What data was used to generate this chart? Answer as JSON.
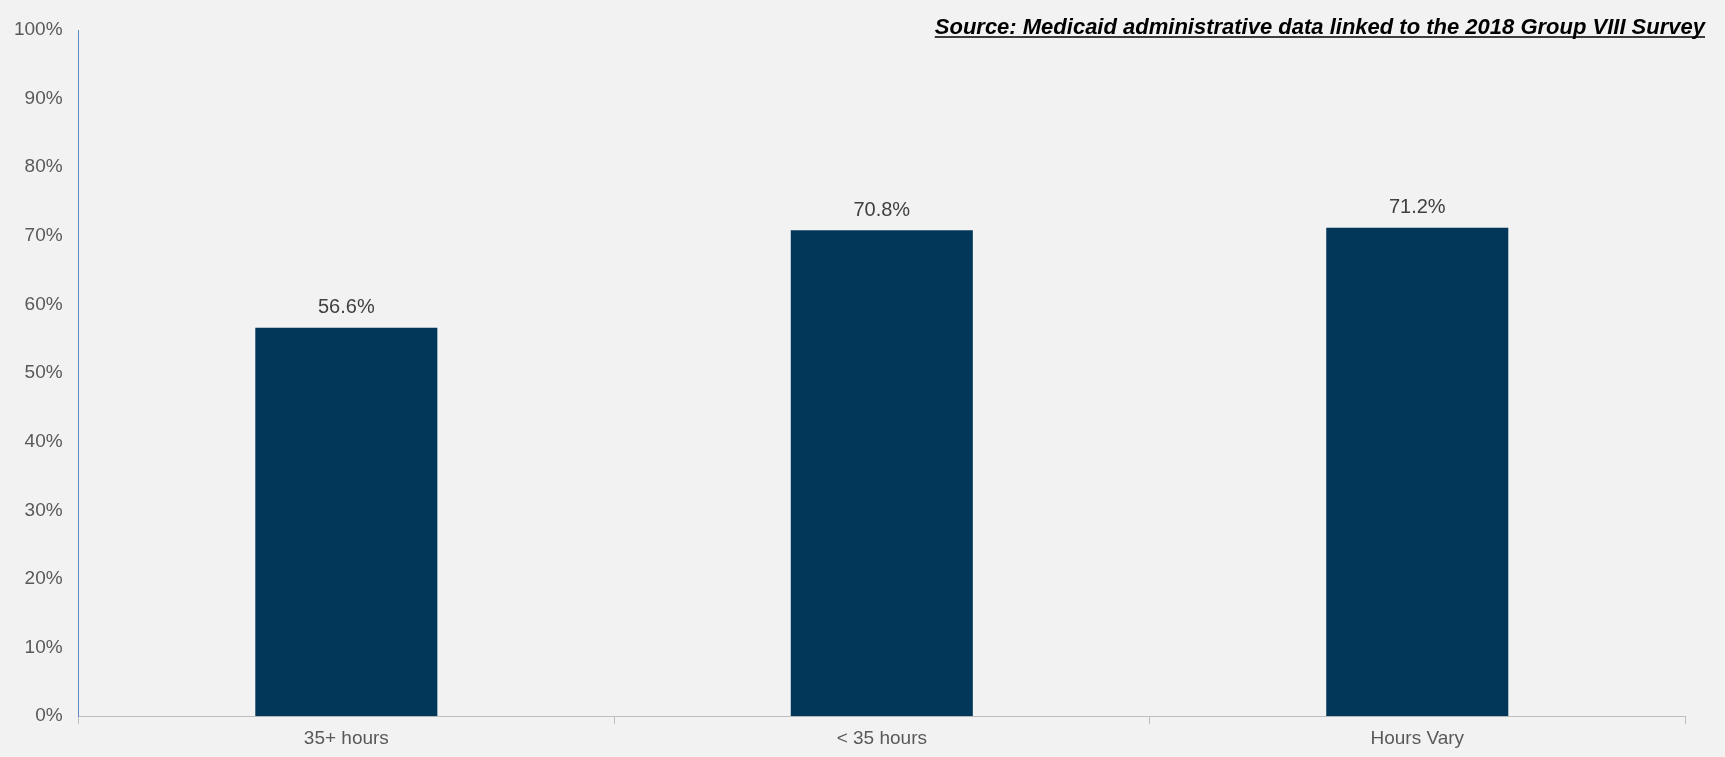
{
  "chart_data": {
    "type": "bar",
    "categories": [
      "35+ hours",
      "< 35 hours",
      "Hours Vary"
    ],
    "values": [
      56.6,
      70.8,
      71.2
    ],
    "value_labels": [
      "56.6%",
      "70.8%",
      "71.2%"
    ],
    "color": "#03375a",
    "ylim": [
      0,
      100
    ],
    "yticks": [
      {
        "value": 0,
        "label": "0%"
      },
      {
        "value": 10,
        "label": "10%"
      },
      {
        "value": 20,
        "label": "20%"
      },
      {
        "value": 30,
        "label": "30%"
      },
      {
        "value": 40,
        "label": "40%"
      },
      {
        "value": 50,
        "label": "50%"
      },
      {
        "value": 60,
        "label": "60%"
      },
      {
        "value": 70,
        "label": "70%"
      },
      {
        "value": 80,
        "label": "80%"
      },
      {
        "value": 90,
        "label": "90%"
      },
      {
        "value": 100,
        "label": "100%"
      }
    ],
    "annotations": [
      "Source: Medicaid administrative data linked to the 2018 Group VIII Survey"
    ],
    "grid": false,
    "legend": false
  }
}
